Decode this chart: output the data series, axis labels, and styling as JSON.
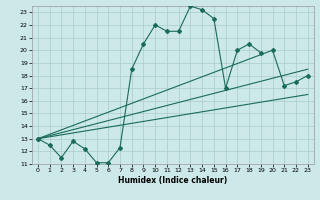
{
  "xlabel": "Humidex (Indice chaleur)",
  "bg_color": "#cce8e8",
  "grid_color": "#b0d0d0",
  "line_color": "#1a6b5a",
  "xlim": [
    -0.5,
    23.5
  ],
  "ylim": [
    11,
    23.5
  ],
  "yticks": [
    11,
    12,
    13,
    14,
    15,
    16,
    17,
    18,
    19,
    20,
    21,
    22,
    23
  ],
  "xticks": [
    0,
    1,
    2,
    3,
    4,
    5,
    6,
    7,
    8,
    9,
    10,
    11,
    12,
    13,
    14,
    15,
    16,
    17,
    18,
    19,
    20,
    21,
    22,
    23
  ],
  "series": [
    {
      "x": [
        0,
        1,
        2,
        3,
        4,
        5,
        6,
        7,
        8,
        9,
        10,
        11,
        12,
        13,
        14,
        15,
        16,
        17,
        18,
        19
      ],
      "y": [
        13,
        12.5,
        11.5,
        12.8,
        12.2,
        11.1,
        11.1,
        12.3,
        18.5,
        20.5,
        22,
        21.5,
        21.5,
        23.5,
        23.2,
        22.5,
        17.0,
        20.0,
        20.5,
        19.8
      ],
      "has_markers": true
    },
    {
      "x": [
        0,
        20,
        21,
        22,
        23
      ],
      "y": [
        13,
        20.0,
        17.2,
        17.5,
        18.0
      ],
      "has_markers": true
    },
    {
      "x": [
        0,
        23
      ],
      "y": [
        13,
        18.5
      ],
      "has_markers": false
    },
    {
      "x": [
        0,
        23
      ],
      "y": [
        13,
        16.5
      ],
      "has_markers": false
    }
  ]
}
